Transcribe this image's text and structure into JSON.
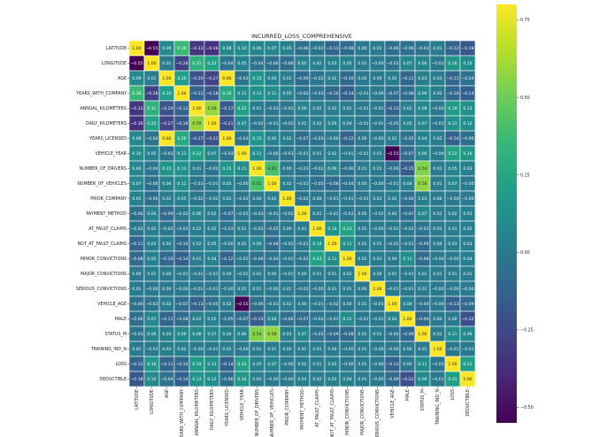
{
  "chart_data": {
    "type": "heatmap",
    "title": "INCURRED_LOSS_COMPREHENSIVE",
    "colormap": "viridis",
    "color_range": [
      -0.55,
      0.8
    ],
    "colorbar_ticks": [
      "0.75",
      "0.50",
      "0.25",
      "0.00",
      "−0.25",
      "−0.50"
    ],
    "colorbar_tick_values": [
      0.75,
      0.5,
      0.25,
      0.0,
      -0.25,
      -0.5
    ],
    "labels": [
      "LATITUDE",
      "LONGITUDE",
      "AGE",
      "YEARS_WITH_COMPANY",
      "ANNUAL_KILOMETERS",
      "DAILY_KILOMETERS",
      "YEARS_LICENSED",
      "VEHICLE_YEAR",
      "NUMBER_OF_DRIVERS",
      "NUMBER_OF_VEHICLES",
      "PRIOR_COMPANY",
      "PAYMENT_METHOD",
      "AT_FAULT_CLAIMS",
      "NOT_AT_FAULT_CLAIMS",
      "MINOR_CONVICTIONS",
      "MAJOR_CONVICTIONS",
      "SERIOUS_CONVICTIONS",
      "VEHICLE_AGE",
      "MALE",
      "STATUS_M",
      "TRAINING_IND_N",
      "LOSS",
      "DEDUCTIBLE"
    ],
    "matrix": [
      [
        "1.00",
        "-0.55",
        "0.09",
        "0.36",
        "-0.33",
        "-0.36",
        "0.08",
        "0.10",
        "0.06",
        "0.07",
        "0.05",
        "-0.06",
        "-0.02",
        "-0.11",
        "-0.08",
        "0.00",
        "0.01",
        "-0.06",
        "-0.06",
        "-0.03",
        "0.01",
        "-0.12",
        "-0.18"
      ],
      [
        "-0.55",
        "1.00",
        "0.01",
        "-0.28",
        "0.31",
        "0.22",
        "-0.04",
        "0.05",
        "-0.04",
        "-0.06",
        "-0.06",
        "0.05",
        "0.02",
        "0.03",
        "0.05",
        "0.01",
        "-0.00",
        "-0.03",
        "0.07",
        "0.06",
        "-0.01",
        "0.16",
        "0.10"
      ],
      [
        "0.09",
        "0.01",
        "1.00",
        "0.20",
        "-0.20",
        "-0.27",
        "0.86",
        "-0.03",
        "0.15",
        "0.04",
        "0.02",
        "-0.09",
        "-0.02",
        "0.02",
        "-0.10",
        "0.00",
        "0.00",
        "0.02",
        "-0.11",
        "0.03",
        "0.03",
        "-0.11",
        "-0.04"
      ],
      [
        "0.36",
        "-0.28",
        "0.20",
        "1.00",
        "-0.12",
        "-0.18",
        "0.26",
        "0.11",
        "0.13",
        "0.11",
        "0.05",
        "-0.02",
        "-0.03",
        "-0.10",
        "-0.14",
        "-0.01",
        "-0.00",
        "-0.07",
        "-0.08",
        "0.09",
        "0.02",
        "-0.10",
        "-0.14"
      ],
      [
        "-0.33",
        "0.31",
        "-0.20",
        "-0.12",
        "1.00",
        "0.59",
        "-0.17",
        "0.22",
        "0.01",
        "-0.03",
        "-0.02",
        "0.06",
        "0.02",
        "0.02",
        "0.01",
        "-0.01",
        "-0.01",
        "-0.13",
        "0.02",
        "0.08",
        "-0.00",
        "0.19",
        "0.13"
      ],
      [
        "-0.36",
        "0.22",
        "-0.27",
        "-0.18",
        "0.59",
        "1.00",
        "-0.21",
        "0.07",
        "-0.02",
        "-0.01",
        "-0.02",
        "0.02",
        "0.02",
        "0.05",
        "0.04",
        "-0.01",
        "-0.01",
        "-0.05",
        "0.05",
        "0.07",
        "-0.01",
        "0.13",
        "0.12"
      ],
      [
        "0.08",
        "-0.04",
        "0.86",
        "0.26",
        "-0.17",
        "-0.21",
        "1.00",
        "-0.03",
        "0.15",
        "0.05",
        "0.02",
        "-0.07",
        "-0.03",
        "-0.00",
        "-0.12",
        "0.00",
        "-0.00",
        "0.02",
        "-0.05",
        "0.04",
        "0.02",
        "-0.14",
        "-0.06"
      ],
      [
        "0.10",
        "0.05",
        "-0.03",
        "0.11",
        "0.22",
        "0.07",
        "-0.03",
        "1.00",
        "0.11",
        "-0.00",
        "-0.03",
        "-0.01",
        "0.01",
        "0.02",
        "-0.01",
        "-0.01",
        "0.01",
        "-0.55",
        "-0.07",
        "0.06",
        "-0.00",
        "0.22",
        "0.16"
      ],
      [
        "0.06",
        "-0.04",
        "0.15",
        "0.13",
        "0.01",
        "-0.02",
        "0.15",
        "0.11",
        "1.00",
        "0.41",
        "0.00",
        "-0.03",
        "-0.02",
        "0.06",
        "-0.06",
        "0.01",
        "0.01",
        "-0.06",
        "-0.15",
        "0.54",
        "0.01",
        "0.05",
        "0.03"
      ],
      [
        "0.07",
        "-0.06",
        "0.04",
        "0.11",
        "-0.03",
        "-0.01",
        "0.05",
        "-0.00",
        "0.41",
        "1.00",
        "0.02",
        "-0.01",
        "-0.05",
        "-0.08",
        "-0.04",
        "0.00",
        "-0.00",
        "-0.01",
        "0.04",
        "0.58",
        "0.01",
        "0.07",
        "-0.00"
      ],
      [
        "0.05",
        "-0.06",
        "0.02",
        "0.05",
        "-0.02",
        "-0.02",
        "0.02",
        "-0.03",
        "0.00",
        "0.02",
        "1.00",
        "-0.02",
        "0.00",
        "-0.01",
        "-0.01",
        "-0.01",
        "0.01",
        "0.02",
        "-0.06",
        "0.03",
        "0.00",
        "-0.00",
        "-0.00"
      ],
      [
        "-0.06",
        "0.05",
        "-0.09",
        "-0.02",
        "0.06",
        "0.02",
        "-0.07",
        "-0.01",
        "-0.03",
        "-0.01",
        "-0.02",
        "1.00",
        "0.01",
        "-0.01",
        "-0.02",
        "0.00",
        "-0.02",
        "0.00",
        "-0.07",
        "0.07",
        "0.01",
        "0.02",
        "0.03"
      ],
      [
        "-0.02",
        "0.02",
        "-0.02",
        "-0.03",
        "0.02",
        "0.02",
        "-0.03",
        "0.01",
        "-0.02",
        "-0.05",
        "0.00",
        "0.01",
        "1.00",
        "0.14",
        "0.23",
        "0.01",
        "-0.00",
        "-0.01",
        "-0.02",
        "-0.03",
        "0.01",
        "0.01",
        "0.02"
      ],
      [
        "-0.11",
        "0.03",
        "0.02",
        "-0.10",
        "0.02",
        "0.05",
        "-0.00",
        "0.02",
        "0.06",
        "-0.08",
        "-0.01",
        "-0.01",
        "0.14",
        "1.00",
        "0.11",
        "0.01",
        "0.01",
        "-0.02",
        "-0.01",
        "-0.09",
        "0.00",
        "0.03",
        "0.03"
      ],
      [
        "-0.08",
        "0.05",
        "-0.10",
        "-0.14",
        "0.01",
        "0.04",
        "-0.12",
        "-0.01",
        "-0.06",
        "-0.04",
        "-0.01",
        "-0.02",
        "0.23",
        "0.11",
        "1.00",
        "0.02",
        "0.01",
        "0.00",
        "0.11",
        "-0.08",
        "-0.00",
        "-0.00",
        "0.04"
      ],
      [
        "0.00",
        "0.01",
        "0.00",
        "-0.01",
        "-0.01",
        "-0.01",
        "0.00",
        "-0.01",
        "0.01",
        "0.00",
        "-0.01",
        "0.00",
        "0.01",
        "0.01",
        "0.02",
        "1.00",
        "0.00",
        "0.01",
        "-0.01",
        "0.01",
        "0.01",
        "0.01",
        "0.01"
      ],
      [
        "0.01",
        "-0.00",
        "0.00",
        "-0.00",
        "-0.01",
        "-0.01",
        "-0.00",
        "0.01",
        "0.01",
        "-0.00",
        "0.01",
        "-0.02",
        "-0.00",
        "0.01",
        "0.01",
        "0.00",
        "1.00",
        "-0.01",
        "-0.01",
        "0.01",
        "-0.00",
        "-0.00",
        "-0.00"
      ],
      [
        "-0.06",
        "-0.03",
        "0.02",
        "-0.07",
        "-0.13",
        "-0.05",
        "0.02",
        "-0.55",
        "-0.06",
        "-0.01",
        "0.02",
        "0.00",
        "-0.01",
        "-0.02",
        "0.00",
        "0.01",
        "-0.01",
        "1.00",
        "0.04",
        "-0.04",
        "-0.00",
        "-0.13",
        "-0.09"
      ],
      [
        "-0.06",
        "0.07",
        "-0.11",
        "-0.08",
        "0.02",
        "0.05",
        "-0.05",
        "-0.07",
        "-0.15",
        "0.04",
        "-0.06",
        "-0.07",
        "-0.02",
        "-0.01",
        "0.11",
        "-0.01",
        "-0.01",
        "0.04",
        "1.00",
        "-0.09",
        "0.00",
        "0.00",
        "-0.22"
      ],
      [
        "-0.03",
        "0.06",
        "0.03",
        "0.09",
        "0.08",
        "0.07",
        "0.04",
        "0.06",
        "0.54",
        "0.58",
        "0.03",
        "0.07",
        "-0.03",
        "-0.09",
        "-0.08",
        "0.01",
        "0.01",
        "-0.04",
        "-0.09",
        "1.00",
        "0.01",
        "0.11",
        "0.09"
      ],
      [
        "0.01",
        "-0.01",
        "0.03",
        "0.02",
        "-0.00",
        "-0.01",
        "0.02",
        "-0.00",
        "0.01",
        "0.01",
        "0.00",
        "0.01",
        "0.01",
        "0.00",
        "-0.00",
        "0.01",
        "-0.00",
        "-0.00",
        "0.00",
        "0.01",
        "1.00",
        "-0.01",
        "-0.01"
      ],
      [
        "-0.12",
        "0.16",
        "-0.11",
        "-0.10",
        "0.19",
        "0.13",
        "-0.14",
        "0.22",
        "0.05",
        "0.07",
        "-0.00",
        "0.02",
        "0.01",
        "0.03",
        "-0.00",
        "0.01",
        "-0.00",
        "-0.13",
        "0.00",
        "0.11",
        "-0.01",
        "1.00",
        "0.21"
      ],
      [
        "-0.18",
        "0.10",
        "-0.04",
        "-0.14",
        "0.13",
        "0.12",
        "-0.06",
        "0.16",
        "0.03",
        "-0.00",
        "-0.00",
        "0.03",
        "0.02",
        "0.03",
        "0.04",
        "0.01",
        "-0.00",
        "-0.09",
        "-0.22",
        "0.09",
        "-0.01",
        "0.21",
        "1.00"
      ]
    ],
    "annotated": true,
    "grid": false,
    "legend": "colorbar-right"
  }
}
